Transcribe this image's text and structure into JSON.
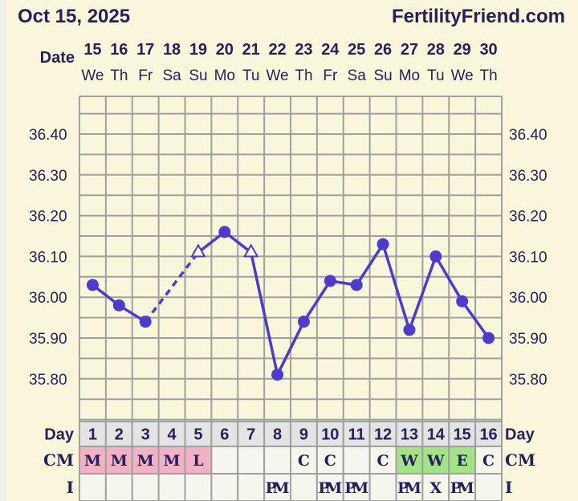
{
  "header": {
    "date": "Oct 15, 2025",
    "site": "FertilityFriend.com"
  },
  "chart_data": {
    "type": "line",
    "date_label": "Date",
    "dates": [
      "15",
      "16",
      "17",
      "18",
      "19",
      "20",
      "21",
      "22",
      "23",
      "24",
      "25",
      "26",
      "27",
      "28",
      "29",
      "30"
    ],
    "weekdays": [
      "We",
      "Th",
      "Fr",
      "Sa",
      "Su",
      "Mo",
      "Tu",
      "We",
      "Th",
      "Fr",
      "Sa",
      "Su",
      "Mo",
      "Tu",
      "We",
      "Th"
    ],
    "y_ticks": [
      "36.40",
      "36.30",
      "36.20",
      "36.10",
      "36.00",
      "35.90",
      "35.80"
    ],
    "ylim": [
      35.7,
      36.49
    ],
    "grid": true,
    "temperatures": [
      36.03,
      35.98,
      35.94,
      null,
      36.11,
      36.16,
      36.11,
      35.81,
      35.94,
      36.04,
      36.03,
      36.13,
      35.92,
      36.1,
      35.99,
      35.9
    ],
    "markers": [
      "dot",
      "dot",
      "dot",
      null,
      "open-triangle",
      "dot",
      "open-triangle",
      "dot",
      "dot",
      "dot",
      "dot",
      "dot",
      "dot",
      "dot",
      "dot",
      "dot"
    ],
    "gap_style": "dashed",
    "line_color": "#4b3ccc",
    "day_label": "Day",
    "days": [
      "1",
      "2",
      "3",
      "4",
      "5",
      "6",
      "7",
      "8",
      "9",
      "10",
      "11",
      "12",
      "13",
      "14",
      "15",
      "16"
    ],
    "cm_label": "CM",
    "cm": [
      "M",
      "M",
      "M",
      "M",
      "L",
      "",
      "",
      "",
      "C",
      "C",
      "",
      "C",
      "W",
      "W",
      "E",
      "C"
    ],
    "cm_colors": {
      "M": "#f2b2c5",
      "L": "#f2b2c5",
      "W": "#a4e28a",
      "E": "#a4e28a"
    },
    "i_label": "I",
    "intercourse": [
      "",
      "",
      "",
      "",
      "",
      "",
      "",
      "PM",
      "",
      "PM",
      "PM",
      "",
      "PM",
      "X",
      "PM",
      ""
    ]
  }
}
